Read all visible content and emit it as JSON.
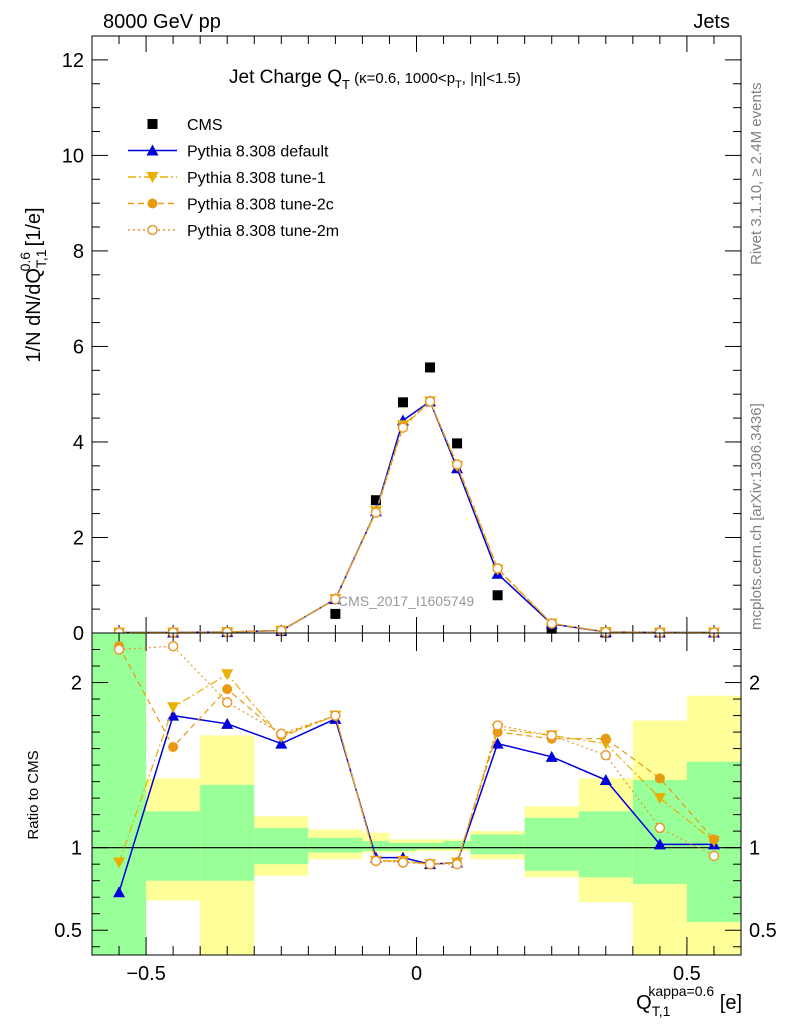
{
  "header": {
    "left": "8000 GeV pp",
    "right": "Jets"
  },
  "side_labels": {
    "rivet": "Rivet 3.1.10, ≥ 2.4M events",
    "mcplots": "mcplots.cern.ch [arXiv:1306.3436]"
  },
  "colors": {
    "cms": "#000000",
    "default": "#0000dd",
    "tune1": "#e8b000",
    "tune2c": "#e89a10",
    "tune2m": "#e89a30",
    "band_inner": "#99ff99",
    "band_outer": "#ffff99"
  },
  "chart_data": [
    {
      "type": "scatter",
      "panel": "main",
      "title": "Jet Charge Q_T (κ=0.6, 1000<p_T, |η|<1.5)",
      "analysis_label": "CMS_2017_I1605749",
      "ylabel": "1/N dN/dQ_T,1^0.6 [1/e]",
      "xlim": [
        -0.6,
        0.6
      ],
      "ylim": [
        0,
        12.5
      ],
      "yticks": [
        0,
        2,
        4,
        6,
        8,
        10,
        12
      ],
      "legend_position": "top-left",
      "x": [
        -0.55,
        -0.45,
        -0.35,
        -0.25,
        -0.15,
        -0.075,
        -0.025,
        0.025,
        0.075,
        0.15,
        0.25,
        0.35,
        0.45,
        0.55
      ],
      "series": [
        {
          "name": "CMS",
          "key": "cms",
          "values": [
            0.01,
            0.01,
            0.02,
            0.04,
            0.4,
            2.78,
            4.83,
            5.56,
            3.97,
            0.79,
            0.09,
            0.01,
            0.01,
            0.01
          ]
        },
        {
          "name": "Pythia 8.308 default",
          "key": "default",
          "values": [
            0.01,
            0.01,
            0.02,
            0.05,
            0.71,
            2.55,
            4.45,
            4.85,
            3.45,
            1.24,
            0.19,
            0.02,
            0.01,
            0.01
          ]
        },
        {
          "name": "Pythia 8.308 tune-1",
          "key": "tune1",
          "values": [
            0.01,
            0.01,
            0.02,
            0.05,
            0.71,
            2.55,
            4.35,
            4.85,
            3.5,
            1.33,
            0.2,
            0.02,
            0.01,
            0.01
          ]
        },
        {
          "name": "Pythia 8.308 tune-2c",
          "key": "tune2c",
          "values": [
            0.01,
            0.01,
            0.02,
            0.05,
            0.71,
            2.53,
            4.32,
            4.85,
            3.53,
            1.35,
            0.2,
            0.02,
            0.01,
            0.01
          ]
        },
        {
          "name": "Pythia 8.308 tune-2m",
          "key": "tune2m",
          "values": [
            0.01,
            0.01,
            0.02,
            0.05,
            0.71,
            2.52,
            4.3,
            4.85,
            3.53,
            1.35,
            0.2,
            0.02,
            0.01,
            0.01
          ]
        }
      ]
    },
    {
      "type": "line",
      "panel": "ratio",
      "ylabel": "Ratio to CMS",
      "xlabel": "Q_T,1^kappa=0.6 [e]",
      "xlim": [
        -0.6,
        0.6
      ],
      "ylim": [
        0.35,
        2.3
      ],
      "yticks": [
        0.5,
        1,
        2
      ],
      "xticks": [
        -0.5,
        0,
        0.5
      ],
      "reference_line": 1,
      "x": [
        -0.55,
        -0.45,
        -0.35,
        -0.25,
        -0.15,
        -0.075,
        -0.025,
        0.025,
        0.075,
        0.15,
        0.25,
        0.35,
        0.45,
        0.55
      ],
      "bin_edges": [
        -0.6,
        -0.5,
        -0.4,
        -0.3,
        -0.2,
        -0.1,
        -0.05,
        0.0,
        0.05,
        0.1,
        0.2,
        0.3,
        0.4,
        0.5,
        0.6
      ],
      "band_inner": {
        "low": [
          0.35,
          0.8,
          0.8,
          0.9,
          0.97,
          0.98,
          0.98,
          0.99,
          0.99,
          0.96,
          0.86,
          0.82,
          0.78,
          0.55
        ],
        "high": [
          2.3,
          1.22,
          1.38,
          1.12,
          1.06,
          1.04,
          1.03,
          1.03,
          1.04,
          1.08,
          1.18,
          1.22,
          1.41,
          1.52
        ]
      },
      "band_outer": {
        "low": [
          0.35,
          0.68,
          0.35,
          0.83,
          0.93,
          0.97,
          0.97,
          0.98,
          0.98,
          0.93,
          0.82,
          0.67,
          0.35,
          0.35
        ]
      },
      "band_outer_high": [
        2.3,
        1.42,
        1.68,
        1.19,
        1.11,
        1.09,
        1.05,
        1.05,
        1.05,
        1.1,
        1.25,
        1.42,
        1.77,
        1.92
      ],
      "series": [
        {
          "name": "Pythia 8.308 default",
          "key": "default",
          "values": [
            0.73,
            1.8,
            1.75,
            1.63,
            1.78,
            0.94,
            0.94,
            0.9,
            0.91,
            1.63,
            1.55,
            1.41,
            1.02,
            1.02
          ]
        },
        {
          "name": "Pythia 8.308 tune-1",
          "key": "tune1",
          "values": [
            0.91,
            1.85,
            2.05,
            1.67,
            1.8,
            0.92,
            0.92,
            0.9,
            0.91,
            1.72,
            1.68,
            1.63,
            1.3,
            1.04
          ]
        },
        {
          "name": "Pythia 8.308 tune-2c",
          "key": "tune2c",
          "values": [
            2.22,
            1.61,
            1.96,
            1.68,
            1.8,
            0.92,
            0.92,
            0.9,
            0.91,
            1.7,
            1.66,
            1.66,
            1.42,
            1.05
          ]
        },
        {
          "name": "Pythia 8.308 tune-2m",
          "key": "tune2m",
          "values": [
            2.2,
            2.22,
            1.88,
            1.69,
            1.8,
            0.92,
            0.91,
            0.9,
            0.9,
            1.74,
            1.68,
            1.56,
            1.12,
            0.95
          ]
        }
      ]
    }
  ]
}
